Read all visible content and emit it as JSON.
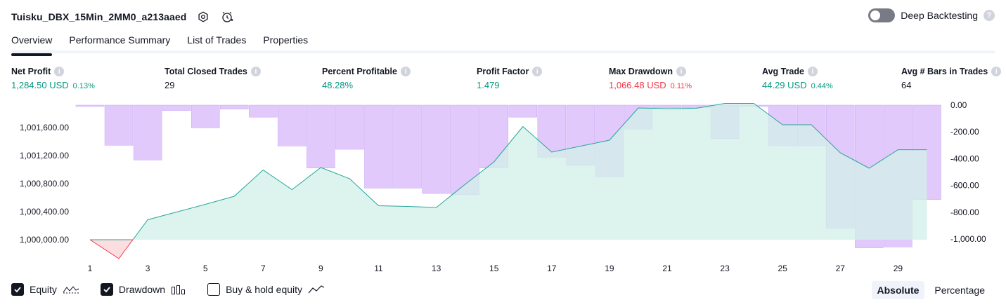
{
  "header": {
    "strategy_name": "Tuisku_DBX_15Min_2MM0_a213aaed",
    "settings_icon": "settings-gear-icon",
    "alert_icon": "add-alert-clock-icon"
  },
  "deep_backtesting": {
    "label": "Deep Backtesting",
    "enabled": false,
    "help": "?"
  },
  "tabs": [
    {
      "label": "Overview",
      "active": true
    },
    {
      "label": "Performance Summary",
      "active": false
    },
    {
      "label": "List of Trades",
      "active": false
    },
    {
      "label": "Properties",
      "active": false
    }
  ],
  "stats": {
    "net_profit": {
      "label": "Net Profit",
      "value": "1,284.50 USD",
      "pct": "0.13%"
    },
    "total_closed_trades": {
      "label": "Total Closed Trades",
      "value": "29"
    },
    "percent_profitable": {
      "label": "Percent Profitable",
      "value": "48.28%"
    },
    "profit_factor": {
      "label": "Profit Factor",
      "value": "1.479"
    },
    "max_drawdown": {
      "label": "Max Drawdown",
      "value": "1,066.48 USD",
      "pct": "0.11%"
    },
    "avg_trade": {
      "label": "Avg Trade",
      "value": "44.29 USD",
      "pct": "0.44%"
    },
    "avg_bars": {
      "label": "Avg # Bars in Trades",
      "value": "64"
    },
    "info_icon": "i"
  },
  "chart_data": {
    "type": "bar",
    "colors": {
      "equity_line": "#26a69a",
      "equity_fill": "#d1f0e8",
      "equity_negative_line": "#f23645",
      "equity_negative_fill": "#fbd5d8",
      "drawdown_bar": "#dfc4fb",
      "drawdown_bar_stroke": "#c8a6f7"
    },
    "x": [
      1,
      2,
      3,
      4,
      5,
      6,
      7,
      8,
      9,
      10,
      11,
      12,
      13,
      14,
      15,
      16,
      17,
      18,
      19,
      20,
      21,
      22,
      23,
      24,
      25,
      26,
      27,
      28,
      29,
      30
    ],
    "x_ticks": [
      "1",
      "3",
      "5",
      "7",
      "9",
      "11",
      "13",
      "15",
      "17",
      "19",
      "21",
      "23",
      "25",
      "27",
      "29"
    ],
    "left_axis": {
      "ticks": [
        "1,001,600.00",
        "1,001,200.00",
        "1,000,800.00",
        "1,000,400.00",
        "1,000,000.00"
      ],
      "ylim": [
        999800,
        1001920
      ]
    },
    "right_axis": {
      "ticks": [
        "0.00",
        "-200.00",
        "-400.00",
        "-600.00",
        "-800.00",
        "-1,000.00"
      ],
      "ylim": [
        -1110,
        0
      ]
    },
    "series": [
      {
        "name": "Equity",
        "type": "area",
        "values": [
          1000000,
          999730,
          1000285,
          1000395,
          1000505,
          1000620,
          1000995,
          1000715,
          1001030,
          1000870,
          1000485,
          1000475,
          1000460,
          1000790,
          1001110,
          1001615,
          1001250,
          1001335,
          1001420,
          1001880,
          1001870,
          1001875,
          1001945,
          1001945,
          1001640,
          1001640,
          1001240,
          1001020,
          1001284,
          1001284
        ]
      },
      {
        "name": "Drawdown",
        "type": "bar",
        "values": [
          -10,
          -300,
          -410,
          -40,
          -170,
          -30,
          -90,
          -305,
          -470,
          -330,
          -620,
          -620,
          -660,
          -670,
          -470,
          -90,
          -390,
          -450,
          -535,
          -180,
          -20,
          -20,
          -250,
          -10,
          -305,
          -305,
          -920,
          -1066,
          -1060,
          -705
        ]
      }
    ]
  },
  "legend": {
    "equity": {
      "label": "Equity",
      "checked": true,
      "icon": "equity-line-icon"
    },
    "drawdown": {
      "label": "Drawdown",
      "checked": true,
      "icon": "drawdown-bars-icon"
    },
    "buy_hold": {
      "label": "Buy & hold equity",
      "checked": false,
      "icon": "buy-hold-line-icon"
    }
  },
  "mode": {
    "absolute": "Absolute",
    "percentage": "Percentage",
    "selected": "Absolute"
  }
}
